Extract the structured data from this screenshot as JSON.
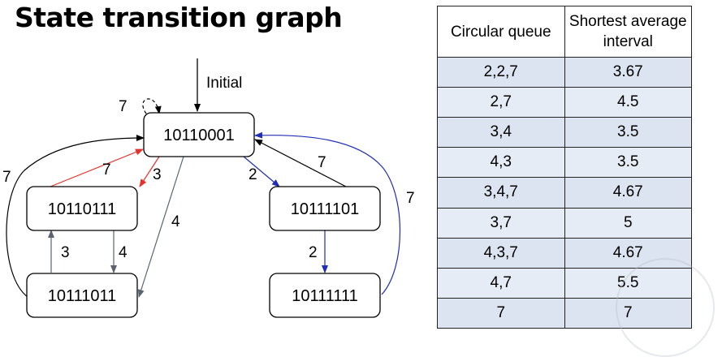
{
  "title": "State transition graph",
  "graph": {
    "initial_label": "Initial",
    "nodes": {
      "n_root": "10110001",
      "n_left_mid": "10110111",
      "n_right_mid": "10111101",
      "n_left_bot": "10111011",
      "n_right_bot": "10111111"
    },
    "edges": {
      "self_loop": "7",
      "left_outer": "7",
      "red_up": "7",
      "red_down": "3",
      "gray_diag": "4",
      "left_up": "3",
      "left_down": "4",
      "blue_down": "2",
      "black_back": "7",
      "right_down": "2",
      "blue_outer": "7"
    },
    "colors": {
      "red": "#e8302a",
      "blue": "#1f2fb5",
      "gray": "#5a6470",
      "black": "#000000"
    }
  },
  "table": {
    "headers": [
      "Circular queue",
      "Shortest average interval"
    ],
    "rows": [
      [
        "2,2,7",
        "3.67"
      ],
      [
        "2,7",
        "4.5"
      ],
      [
        "3,4",
        "3.5"
      ],
      [
        "4,3",
        "3.5"
      ],
      [
        "3,4,7",
        "4.67"
      ],
      [
        "3,7",
        "5"
      ],
      [
        "4,3,7",
        "4.67"
      ],
      [
        "4,7",
        "5.5"
      ],
      [
        "7",
        "7"
      ]
    ]
  }
}
